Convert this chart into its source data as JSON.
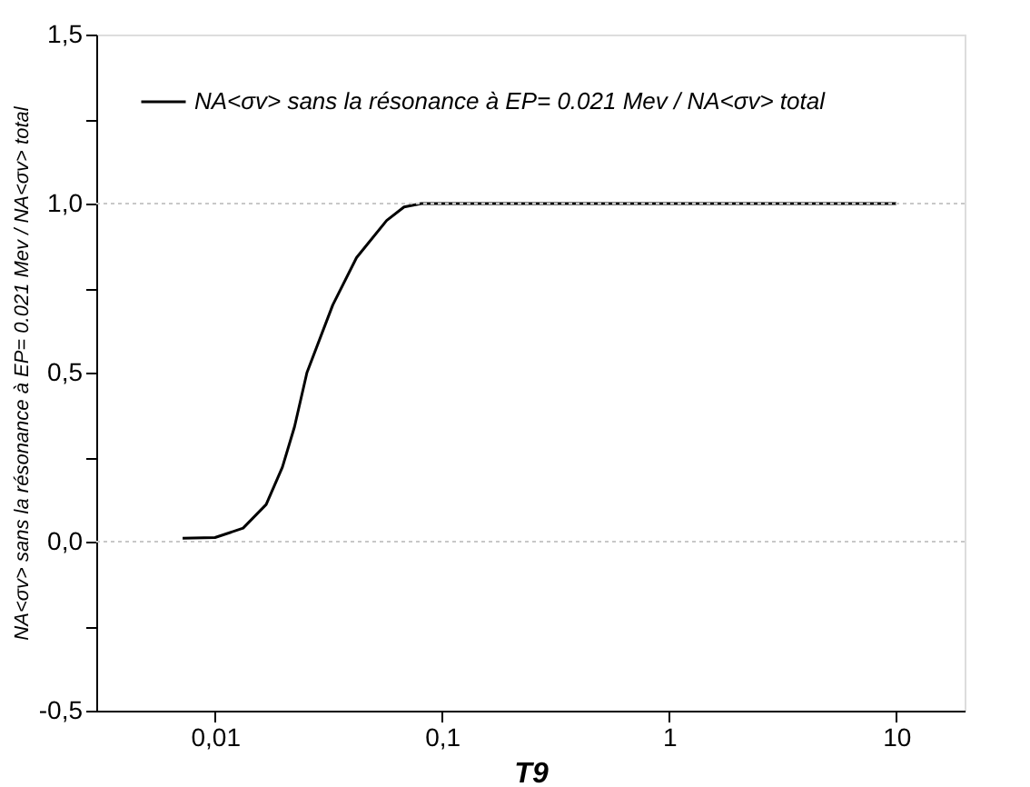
{
  "chart_data": {
    "type": "line",
    "xlabel": "T9",
    "ylabel": "NA<σv> sans la résonance à EP= 0.021 Mev / NA<σv> total",
    "x": [
      0.0072,
      0.01,
      0.0133,
      0.0168,
      0.0198,
      0.0224,
      0.0254,
      0.033,
      0.042,
      0.057,
      0.068,
      0.081,
      10
    ],
    "series": [
      {
        "name": "NA<σv> sans la résonance à EP= 0.021 Mev / NA<σv> total",
        "color": "#000000",
        "values": [
          0.01,
          0.012,
          0.04,
          0.11,
          0.22,
          0.34,
          0.5,
          0.7,
          0.84,
          0.95,
          0.99,
          1.0,
          1.0
        ]
      }
    ],
    "log": "x",
    "xlim": [
      0.003,
      20
    ],
    "xticks": [
      {
        "value": 0.01,
        "label": "0,01"
      },
      {
        "value": 0.1,
        "label": "0,1"
      },
      1,
      10
    ],
    "ylim": [
      -0.5,
      1.5
    ],
    "yticks": [
      {
        "value": -0.5,
        "label": "-0,5"
      },
      {
        "value": -0.25,
        "label": null
      },
      {
        "value": 0,
        "label": "0,0"
      },
      {
        "value": 0.25,
        "label": null
      },
      {
        "value": 0.5,
        "label": "0,5"
      },
      {
        "value": 0.75,
        "label": null
      },
      {
        "value": 1.0,
        "label": "1,0"
      },
      {
        "value": 1.25,
        "label": null
      },
      {
        "value": 1.5,
        "label": "1,5"
      }
    ],
    "ref_lines": [
      {
        "axis": "y",
        "value": 0,
        "color": "#c8c8c8",
        "line_style": "dotted"
      },
      {
        "axis": "y",
        "value": 1.0,
        "color": "#c8c8c8",
        "line_style": "dotted"
      }
    ],
    "legend": "top left",
    "marker": "none",
    "line_style": "solid",
    "grid": false
  }
}
